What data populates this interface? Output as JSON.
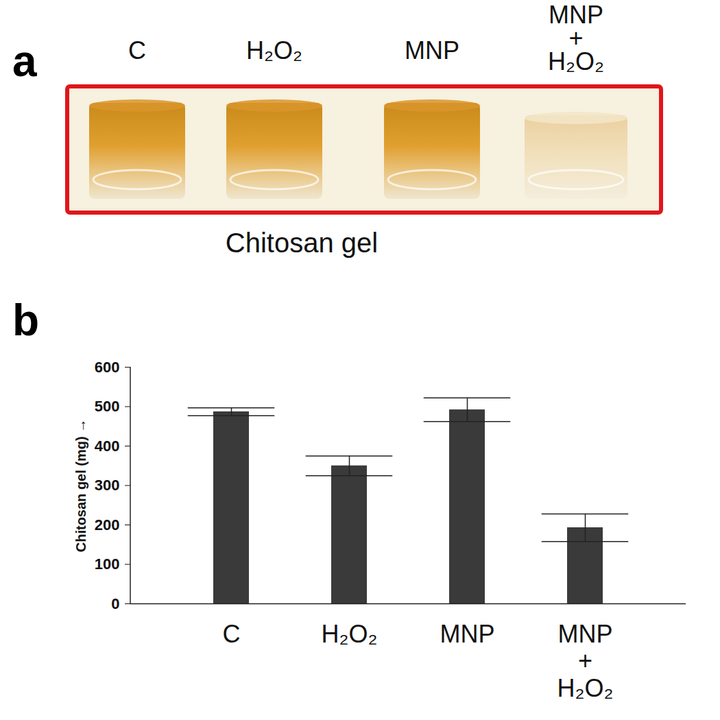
{
  "panel_a": {
    "label": "a",
    "samples": [
      "C",
      "H₂O₂",
      "MNP",
      "MNP + H₂O₂"
    ],
    "caption": "Chitosan gel"
  },
  "panel_b_label": "b",
  "chart_data": {
    "type": "bar",
    "categories": [
      "C",
      "H₂O₂",
      "MNP",
      "MNP + H₂O₂"
    ],
    "values": [
      487,
      350,
      492,
      193
    ],
    "errors": [
      10,
      25,
      30,
      35
    ],
    "color": "#3a3a3a",
    "y_label": "Chitosan gel (mg)",
    "ylim": [
      0,
      600
    ],
    "yticks": [
      0,
      100,
      200,
      300,
      400,
      500,
      600
    ],
    "grid": false
  }
}
